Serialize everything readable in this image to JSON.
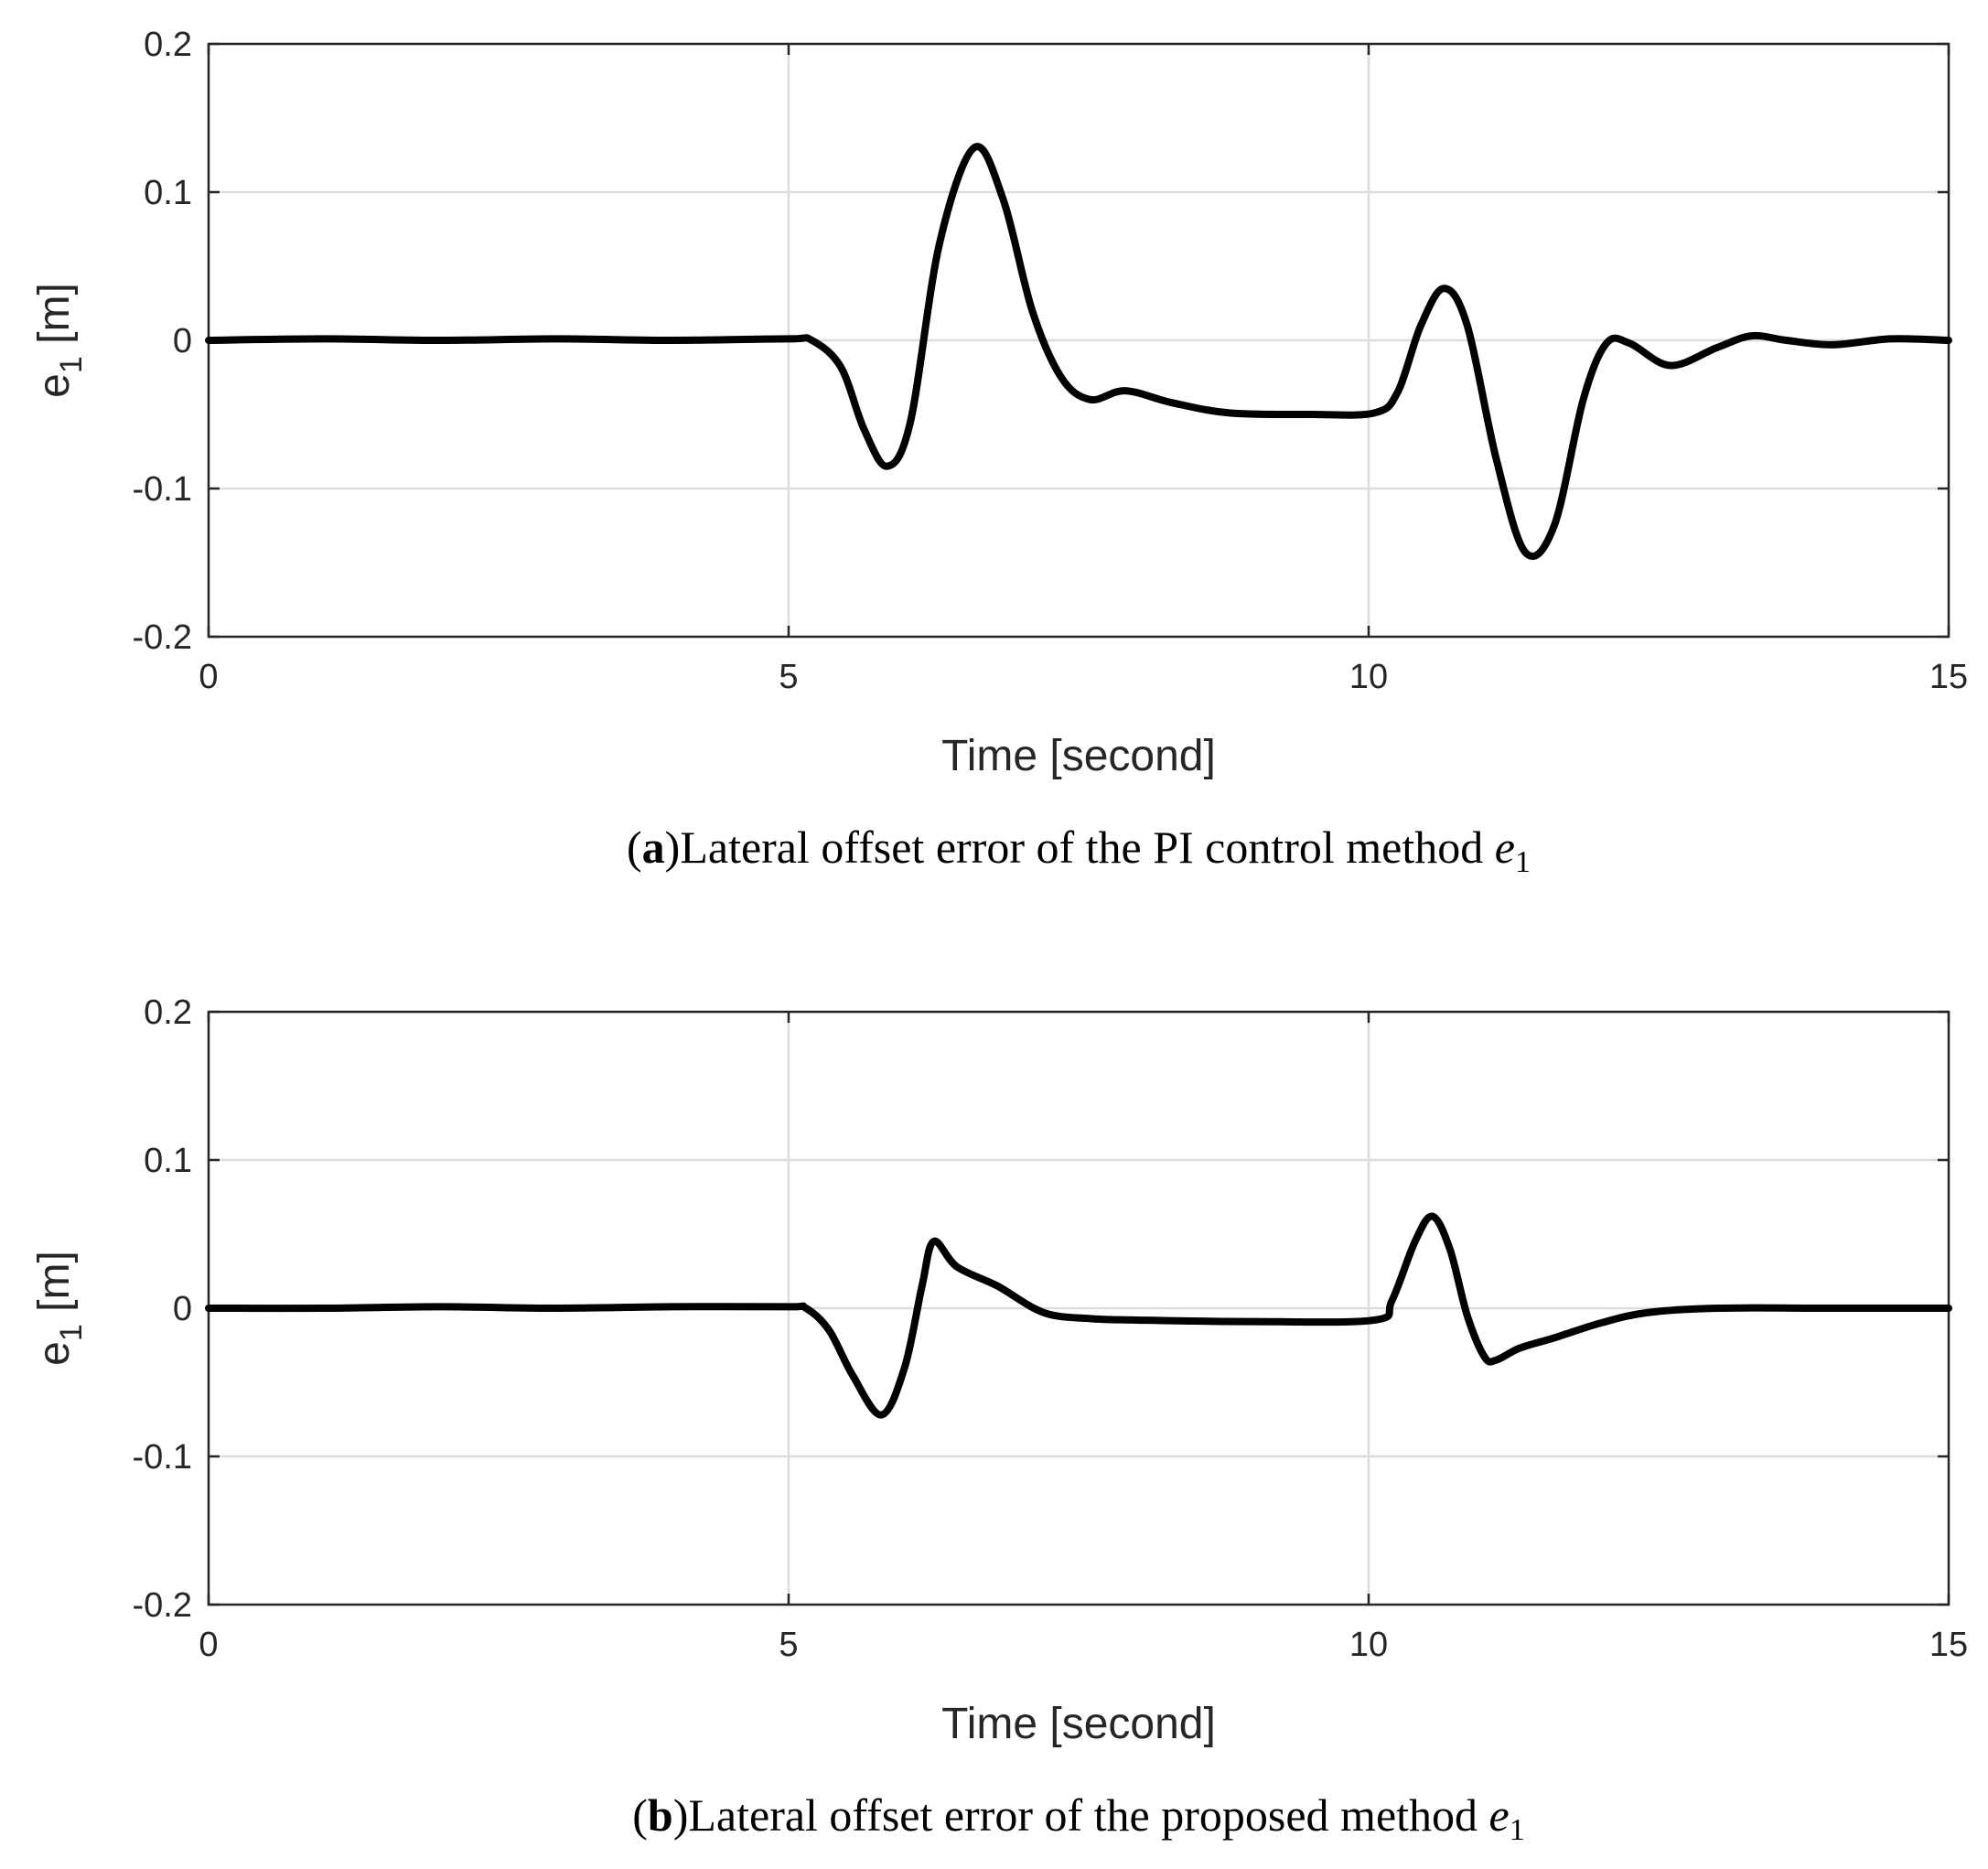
{
  "colors": {
    "line": "#000000",
    "grid": "#dcdcdc",
    "axes": "#262626"
  },
  "chart_data": [
    {
      "type": "line",
      "panel": "a",
      "caption_label": "a",
      "caption_text": "Lateral offset error of the PI control method ",
      "caption_var": "e",
      "caption_sub": "1",
      "xlabel": "Time [second]",
      "ylabel_base": "e",
      "ylabel_sub": "1",
      "ylabel_unit": " [m]",
      "xlim": [
        0,
        15
      ],
      "ylim": [
        -0.2,
        0.2
      ],
      "xticks": [
        "0",
        "5",
        "10",
        "15"
      ],
      "yticks": [
        "-0.2",
        "-0.1",
        "0",
        "0.1",
        "0.2"
      ],
      "grid": true,
      "series": [
        {
          "name": "e1",
          "x": [
            0,
            1,
            2,
            3,
            4,
            5,
            5.2,
            5.45,
            5.65,
            5.85,
            6.05,
            6.3,
            6.6,
            6.85,
            7.1,
            7.35,
            7.6,
            7.9,
            8.3,
            8.8,
            9.5,
            10.05,
            10.25,
            10.45,
            10.65,
            10.85,
            11.1,
            11.35,
            11.6,
            11.85,
            12.05,
            12.25,
            12.6,
            13.0,
            13.3,
            13.6,
            14.0,
            14.5,
            15
          ],
          "y": [
            0,
            0.001,
            0.0,
            0.001,
            0.0,
            0.001,
            0.0,
            -0.018,
            -0.06,
            -0.085,
            -0.055,
            0.065,
            0.13,
            0.095,
            0.02,
            -0.025,
            -0.04,
            -0.034,
            -0.042,
            -0.049,
            -0.05,
            -0.049,
            -0.035,
            0.01,
            0.035,
            0.01,
            -0.08,
            -0.143,
            -0.125,
            -0.04,
            -0.002,
            -0.002,
            -0.017,
            -0.005,
            0.003,
            0.0,
            -0.003,
            0.001,
            0.0
          ]
        }
      ]
    },
    {
      "type": "line",
      "panel": "b",
      "caption_label": "b",
      "caption_text": "Lateral offset error of the proposed method ",
      "caption_var": "e",
      "caption_sub": "1",
      "xlabel": "Time [second]",
      "ylabel_base": "e",
      "ylabel_sub": "1",
      "ylabel_unit": " [m]",
      "xlim": [
        0,
        15
      ],
      "ylim": [
        -0.2,
        0.2
      ],
      "xticks": [
        "0",
        "5",
        "10",
        "15"
      ],
      "yticks": [
        "-0.2",
        "-0.1",
        "0",
        "0.1",
        "0.2"
      ],
      "grid": true,
      "series": [
        {
          "name": "e1",
          "x": [
            0,
            1,
            2,
            3,
            4,
            5,
            5.15,
            5.35,
            5.55,
            5.8,
            6.0,
            6.15,
            6.25,
            6.45,
            6.8,
            7.2,
            7.6,
            8.0,
            9.0,
            10.05,
            10.2,
            10.4,
            10.55,
            10.7,
            10.85,
            11.0,
            11.1,
            11.3,
            11.6,
            12.0,
            12.4,
            13.0,
            14.0,
            15
          ],
          "y": [
            0,
            0.0,
            0.001,
            0.0,
            0.001,
            0.001,
            0.0,
            -0.015,
            -0.045,
            -0.072,
            -0.04,
            0.015,
            0.045,
            0.028,
            0.015,
            -0.003,
            -0.007,
            -0.008,
            -0.009,
            -0.008,
            0.005,
            0.045,
            0.062,
            0.04,
            -0.005,
            -0.033,
            -0.035,
            -0.027,
            -0.02,
            -0.01,
            -0.003,
            0.0,
            0.0,
            0.0
          ]
        }
      ]
    }
  ]
}
